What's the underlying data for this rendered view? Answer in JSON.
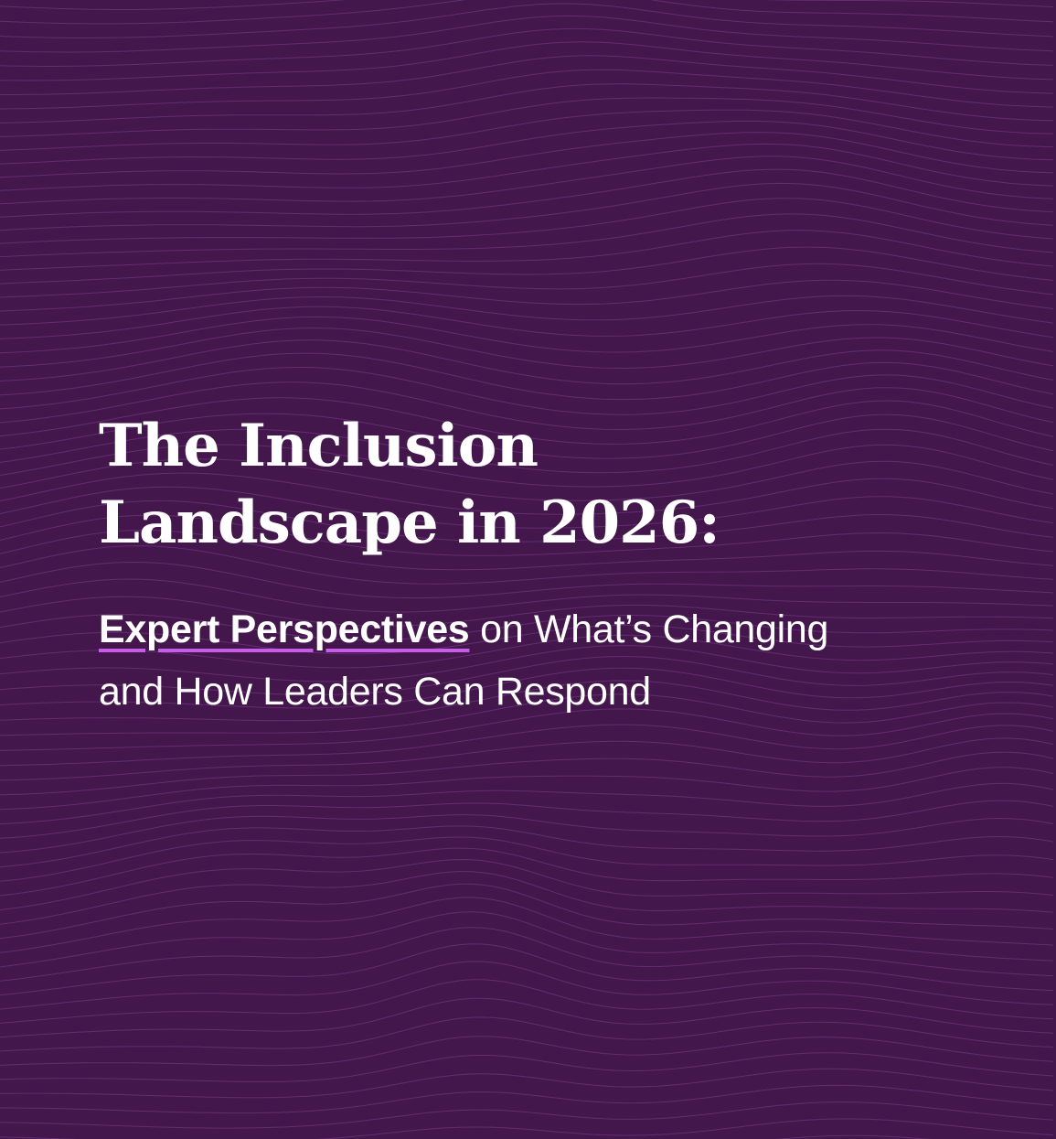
{
  "cover": {
    "title_line1": "The Inclusion",
    "title_line2": "Landscape in 2026:",
    "subtitle_highlight": "Expert Perspectives",
    "subtitle_rest_line1": " on What’s Changing",
    "subtitle_line2": "and How Leaders Can Respond"
  },
  "colors": {
    "background": "#43174c",
    "wave_lines": "#7a3a8a",
    "text": "#ffffff",
    "underline_accent": "#c75ce8"
  }
}
